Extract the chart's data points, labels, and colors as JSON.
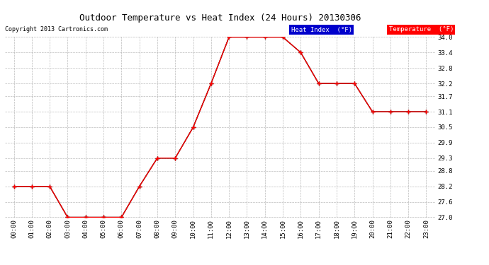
{
  "title": "Outdoor Temperature vs Heat Index (24 Hours) 20130306",
  "copyright": "Copyright 2013 Cartronics.com",
  "x_labels": [
    "00:00",
    "01:00",
    "02:00",
    "03:00",
    "04:00",
    "05:00",
    "06:00",
    "07:00",
    "08:00",
    "09:00",
    "10:00",
    "11:00",
    "12:00",
    "13:00",
    "14:00",
    "15:00",
    "16:00",
    "17:00",
    "18:00",
    "19:00",
    "20:00",
    "21:00",
    "22:00",
    "23:00"
  ],
  "ylim": [
    27.0,
    34.0
  ],
  "yticks": [
    27.0,
    27.6,
    28.2,
    28.8,
    29.3,
    29.9,
    30.5,
    31.1,
    31.7,
    32.2,
    32.8,
    33.4,
    34.0
  ],
  "temperature_data": [
    28.2,
    28.2,
    28.2,
    27.0,
    27.0,
    27.0,
    27.0,
    28.2,
    29.3,
    29.3,
    30.5,
    32.2,
    34.0,
    34.0,
    34.0,
    34.0,
    33.4,
    32.2,
    32.2,
    32.2,
    31.1,
    31.1,
    31.1,
    31.1
  ],
  "heat_index_data": [
    28.2,
    28.2,
    28.2,
    27.0,
    27.0,
    27.0,
    27.0,
    28.2,
    29.3,
    29.3,
    30.5,
    32.2,
    34.0,
    34.0,
    34.0,
    34.0,
    33.4,
    32.2,
    32.2,
    32.2,
    31.1,
    31.1,
    31.1,
    31.1
  ],
  "temp_color": "#FF0000",
  "heat_index_color": "#000000",
  "bg_color": "#FFFFFF",
  "grid_color": "#AAAAAA",
  "legend_heat_bg": "#0000CC",
  "legend_temp_bg": "#FF0000",
  "legend_text_color": "#FFFFFF"
}
